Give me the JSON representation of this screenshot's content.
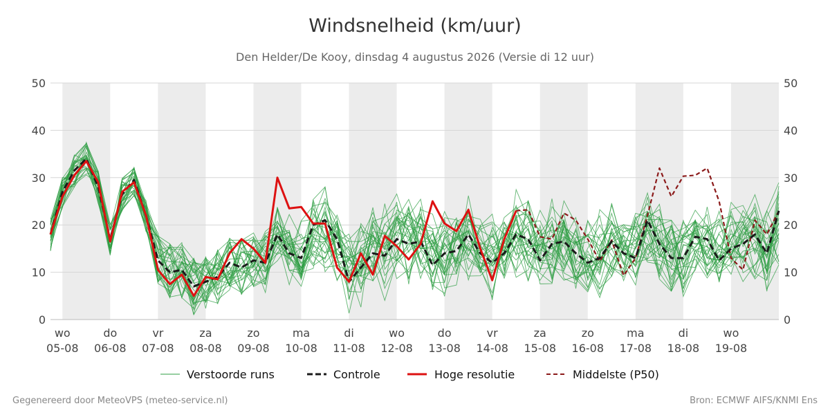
{
  "title": "Windsnelheid (km/uur)",
  "subtitle": "Den Helder/De Kooy, dinsdag  4 augustus 2026 (Versie di 12 uur)",
  "footer_left": "Gegenereerd door MeteoVPS (meteo-service.nl)",
  "footer_right": "Bron: ECMWF AIFS/KNMI Ens",
  "colors": {
    "ensemble": "#2e9e43",
    "control": "#1a1a1a",
    "high_res": "#dd1111",
    "median": "#8b1a1a",
    "night_band": "#ececec",
    "grid": "#d6d6d6"
  },
  "chart_data": {
    "type": "line",
    "title": "Windsnelheid (km/uur)",
    "ylabel": "",
    "xlabel": "",
    "ylim": [
      0,
      50
    ],
    "yticks": [
      0,
      10,
      20,
      30,
      40,
      50
    ],
    "xlim": [
      -0.25,
      15.0
    ],
    "x_unit": "days from wo 05-08 00:00",
    "x_ticks": [
      {
        "day": "wo",
        "date": "05-08"
      },
      {
        "day": "do",
        "date": "06-08"
      },
      {
        "day": "vr",
        "date": "07-08"
      },
      {
        "day": "za",
        "date": "08-08"
      },
      {
        "day": "zo",
        "date": "09-08"
      },
      {
        "day": "ma",
        "date": "10-08"
      },
      {
        "day": "di",
        "date": "11-08"
      },
      {
        "day": "wo",
        "date": "12-08"
      },
      {
        "day": "do",
        "date": "13-08"
      },
      {
        "day": "vr",
        "date": "14-08"
      },
      {
        "day": "za",
        "date": "15-08"
      },
      {
        "day": "zo",
        "date": "16-08"
      },
      {
        "day": "ma",
        "date": "17-08"
      },
      {
        "day": "di",
        "date": "18-08"
      },
      {
        "day": "wo",
        "date": "19-08"
      }
    ],
    "shaded_days": [
      0,
      2,
      4,
      6,
      8,
      10,
      12,
      14
    ],
    "grid": true,
    "legend_position": "bottom",
    "legend": [
      "Verstoorde runs",
      "Controle",
      "Hoge resolutie",
      "Middelste (P50)"
    ],
    "series": [
      {
        "name": "Hoge resolutie",
        "x": [
          -0.25,
          0,
          0.25,
          0.5,
          0.75,
          1,
          1.25,
          1.5,
          1.75,
          2,
          2.25,
          2.5,
          2.75,
          3,
          3.25,
          3.5,
          3.75,
          4,
          4.25,
          4.5,
          4.75,
          5,
          5.25,
          5.5,
          5.75,
          6,
          6.25,
          6.5,
          6.75,
          7,
          7.25,
          7.5,
          7.75,
          8,
          8.25,
          8.5,
          8.75,
          9,
          9.25,
          9.5
        ],
        "y": [
          18,
          26,
          30.5,
          33.5,
          29,
          16.5,
          27,
          29,
          22,
          10.5,
          7.5,
          9.5,
          5,
          9,
          8.5,
          14,
          17,
          15,
          12,
          30,
          23.5,
          23.8,
          20.3,
          20.3,
          11,
          8,
          14,
          9.5,
          17.7,
          15.5,
          12.7,
          16,
          25,
          20.3,
          18.7,
          23.2,
          15,
          8.3,
          17,
          23
        ]
      },
      {
        "name": "Controle",
        "x": [
          -0.25,
          0,
          0.25,
          0.5,
          0.75,
          1,
          1.25,
          1.5,
          1.75,
          2,
          2.25,
          2.5,
          2.75,
          3,
          3.25,
          3.5,
          3.75,
          4,
          4.25,
          4.5,
          4.75,
          5,
          5.25,
          5.5,
          5.75,
          6,
          6.25,
          6.5,
          6.75,
          7,
          7.25,
          7.5,
          7.75,
          8,
          8.25,
          8.5,
          8.75,
          9,
          9.25,
          9.5,
          9.75,
          10,
          10.25,
          10.5,
          10.75,
          11,
          11.25,
          11.5,
          11.75,
          12,
          12.25,
          12.5,
          12.75,
          13,
          13.25,
          13.5,
          13.75,
          14,
          14.25,
          14.5,
          14.75,
          15
        ],
        "y": [
          18,
          27,
          31.5,
          34,
          28,
          17,
          26.5,
          29.5,
          22,
          12.5,
          10,
          10.5,
          7,
          8,
          9,
          12,
          11,
          12.5,
          12,
          18,
          14,
          13,
          20,
          21,
          17,
          8,
          11,
          14,
          13.5,
          17,
          16,
          16.5,
          11.5,
          14,
          14.5,
          18,
          14,
          12,
          14,
          18,
          17,
          12.5,
          16,
          16.5,
          14,
          12,
          13,
          16.5,
          14,
          13,
          21,
          16,
          13,
          13,
          17.5,
          17,
          12.5,
          15,
          16,
          18,
          14,
          23
        ]
      },
      {
        "name": "Middelste (P50)",
        "x": [
          9.5,
          9.75,
          10,
          10.25,
          10.5,
          10.75,
          11,
          11.25,
          11.5,
          11.75,
          12,
          12.25,
          12.5,
          12.75,
          13,
          13.25,
          13.5,
          13.75,
          14,
          14.25,
          14.5,
          14.75,
          15
        ],
        "y": [
          23,
          23.2,
          17.5,
          17,
          22.5,
          21,
          17,
          12.3,
          16.8,
          9.3,
          13,
          22,
          32,
          26,
          30.3,
          30.5,
          32,
          25,
          13,
          10.5,
          21,
          18,
          23
        ]
      }
    ]
  },
  "legend_labels": {
    "ensemble": "Verstoorde runs",
    "control": "Controle",
    "high_res": "Hoge resolutie",
    "median": "Middelste (P50)"
  }
}
